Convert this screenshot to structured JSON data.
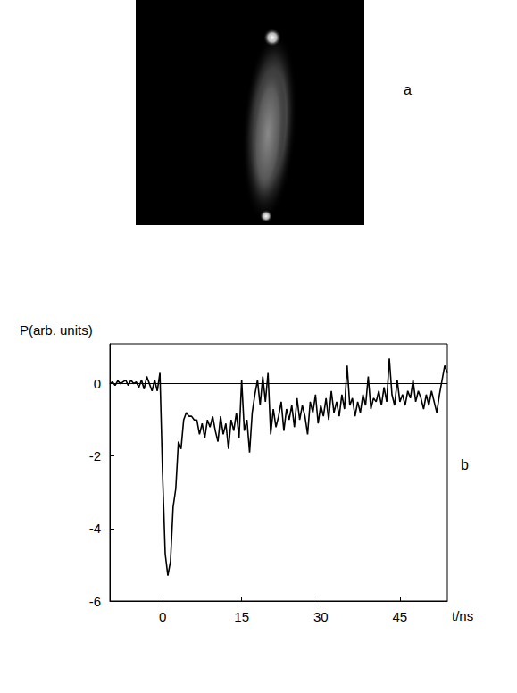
{
  "chart_data": {
    "type": "line",
    "xlabel": "t/ns",
    "ylabel": "P(arb. units)",
    "annotations": [
      "a",
      "b"
    ],
    "color": "#000000",
    "grid": false,
    "baseline": 0,
    "xlim": [
      -10,
      54
    ],
    "xticks": [
      0,
      15,
      30,
      45
    ],
    "ylim": [
      -6,
      1.1
    ],
    "yticks": [
      -6,
      -4,
      -2,
      0
    ],
    "x": [
      -10,
      -9.5,
      -9,
      -8.5,
      -8,
      -7.5,
      -7,
      -6.5,
      -6,
      -5.5,
      -5,
      -4.5,
      -4,
      -3.5,
      -3,
      -2.5,
      -2,
      -1.5,
      -1,
      -0.5,
      0,
      0.5,
      1,
      1.5,
      2,
      2.5,
      3,
      3.5,
      4,
      4.5,
      5,
      5.5,
      6,
      6.5,
      7,
      7.5,
      8,
      8.5,
      9,
      9.5,
      10,
      10.5,
      11,
      11.5,
      12,
      12.5,
      13,
      13.5,
      14,
      14.5,
      15,
      15.5,
      16,
      16.5,
      17,
      17.5,
      18,
      18.5,
      19,
      19.5,
      20,
      20.5,
      21,
      21.5,
      22,
      22.5,
      23,
      23.5,
      24,
      24.5,
      25,
      25.5,
      26,
      26.5,
      27,
      27.5,
      28,
      28.5,
      29,
      29.5,
      30,
      30.5,
      31,
      31.5,
      32,
      32.5,
      33,
      33.5,
      34,
      34.5,
      35,
      35.5,
      36,
      36.5,
      37,
      37.5,
      38,
      38.5,
      39,
      39.5,
      40,
      40.5,
      41,
      41.5,
      42,
      42.5,
      43,
      43.5,
      44,
      44.5,
      45,
      45.5,
      46,
      46.5,
      47,
      47.5,
      48,
      48.5,
      49,
      49.5,
      50,
      50.5,
      51,
      51.5,
      52,
      52.5,
      53,
      53.5,
      54
    ],
    "values": [
      0,
      0.05,
      -0.05,
      0.08,
      0,
      0.05,
      0.1,
      -0.05,
      0.1,
      0,
      0.05,
      -0.1,
      0.1,
      -0.15,
      0.2,
      0,
      -0.2,
      0.1,
      -0.2,
      0.3,
      -2.5,
      -4.7,
      -5.3,
      -4.9,
      -3.4,
      -2.9,
      -1.6,
      -1.8,
      -1.0,
      -0.8,
      -0.9,
      -0.9,
      -1.0,
      -1.0,
      -1.4,
      -1.1,
      -1.5,
      -1.0,
      -1.2,
      -0.9,
      -1.3,
      -1.6,
      -0.9,
      -1.4,
      -1.1,
      -1.8,
      -1.0,
      -1.3,
      -0.8,
      -1.5,
      0.1,
      -1.3,
      -1.0,
      -1.9,
      -0.8,
      -0.3,
      0.1,
      -0.6,
      0.2,
      -0.5,
      0.3,
      -1.4,
      -0.7,
      -1.2,
      -0.9,
      -0.5,
      -1.3,
      -0.7,
      -1.0,
      -0.6,
      -1.2,
      -0.4,
      -1.0,
      -0.6,
      -0.9,
      -1.4,
      -0.5,
      -0.8,
      -0.3,
      -1.1,
      -0.6,
      -0.9,
      -0.4,
      -1.0,
      -0.2,
      -0.8,
      -0.5,
      -0.9,
      -0.3,
      -0.7,
      0.5,
      -0.6,
      -0.4,
      -0.9,
      -0.5,
      -0.8,
      -0.3,
      -0.6,
      0.2,
      -0.7,
      -0.4,
      -0.5,
      -0.2,
      -0.6,
      -0.1,
      -0.5,
      0.7,
      -0.3,
      -0.6,
      0.1,
      -0.5,
      -0.3,
      -0.6,
      -0.2,
      -0.4,
      0.1,
      -0.5,
      -0.2,
      -0.4,
      -0.7,
      -0.3,
      -0.6,
      -0.2,
      -0.5,
      -0.8,
      -0.3,
      0.1,
      0.5,
      0.3
    ]
  }
}
